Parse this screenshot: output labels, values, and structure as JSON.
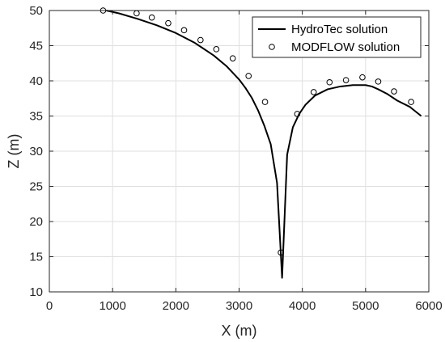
{
  "chart_data": {
    "type": "line",
    "xlabel": "X (m)",
    "ylabel": "Z (m)",
    "xlim": [
      0,
      6000
    ],
    "ylim": [
      10,
      50
    ],
    "xticks": [
      0,
      1000,
      2000,
      3000,
      4000,
      5000,
      6000
    ],
    "yticks": [
      10,
      15,
      20,
      25,
      30,
      35,
      40,
      45,
      50
    ],
    "grid": true,
    "legend_position": "top-right",
    "series": [
      {
        "name": "HydroTec solution",
        "style": "line",
        "color": "#000000",
        "x": [
          900,
          1100,
          1400,
          1700,
          2000,
          2300,
          2600,
          2800,
          3000,
          3100,
          3200,
          3300,
          3400,
          3500,
          3600,
          3680,
          3760,
          3850,
          3950,
          4050,
          4200,
          4400,
          4600,
          4800,
          5000,
          5100,
          5200,
          5350,
          5500,
          5700,
          5880
        ],
        "y": [
          50,
          49.6,
          48.8,
          47.9,
          46.8,
          45.4,
          43.6,
          42.1,
          40.2,
          39,
          37.6,
          35.8,
          33.6,
          31,
          25.5,
          12,
          29.5,
          33.4,
          35.3,
          36.6,
          37.9,
          38.8,
          39.2,
          39.4,
          39.4,
          39.2,
          38.8,
          38.1,
          37.2,
          36.3,
          35
        ]
      },
      {
        "name": "MODFLOW solution",
        "style": "marker",
        "color": "#000000",
        "x": [
          850,
          1380,
          1620,
          1880,
          2130,
          2390,
          2640,
          2900,
          3150,
          3410,
          3660,
          3920,
          4180,
          4430,
          4690,
          4950,
          5200,
          5450,
          5720
        ],
        "y": [
          50,
          49.6,
          49,
          48.2,
          47.2,
          45.8,
          44.5,
          43.2,
          40.7,
          37,
          15.6,
          35.3,
          38.4,
          39.8,
          40.1,
          40.5,
          39.9,
          38.5,
          37
        ]
      }
    ]
  }
}
